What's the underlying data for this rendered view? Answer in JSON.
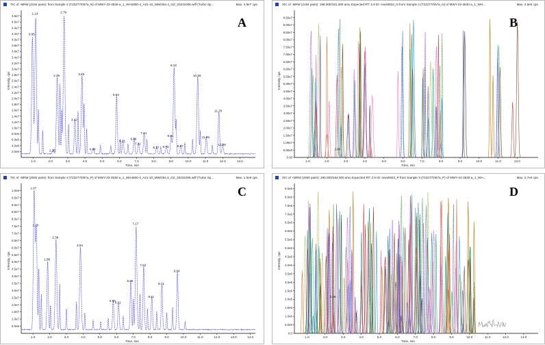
{
  "colors": {
    "tic_trace": "#4040ff",
    "axis": "#000000",
    "xic_palette": [
      "#2e8b2e",
      "#0a8a8a",
      "#d03030",
      "#8a2be2",
      "#c07000",
      "#1e90ff",
      "#9aa020",
      "#333333",
      "#ff6fb0",
      "#2255cc",
      "#7a3b1a",
      "#00aa66",
      "#cc33cc",
      "#555599",
      "#e07030"
    ]
  },
  "panels": [
    {
      "id": "A",
      "header": "TIC of -MRM (2184 pairs): from Sample 3 (T23277/067a_N) of MWY-23-3530-a_1_WH4800-4_A21-10_MW/284.4_GZ_20231006.wiff (Turbo Sp...",
      "max_label": "Max. 4.9e7 cps.",
      "ylabel": "Intensity, cps",
      "xlabel": "Time, min",
      "letter": "A",
      "chart_data": {
        "type": "line",
        "xlim": [
          0.3,
          13.9
        ],
        "ylim": [
          0,
          50000000.0
        ],
        "x_ticks": [
          "1.0",
          "2.0",
          "3.0",
          "4.0",
          "5.0",
          "6.0",
          "7.0",
          "8.0",
          "9.0",
          "10.0",
          "11.0",
          "12.0",
          "13.0"
        ],
        "y_ticks": [
          "2.0e6",
          "4.0e6",
          "6.0e6",
          "8.0e6",
          "1.0e7",
          "1.2e7",
          "1.4e7",
          "1.6e7",
          "1.8e7",
          "2.0e7",
          "2.2e7",
          "2.4e7",
          "2.6e7",
          "2.8e7",
          "3.0e7",
          "3.2e7",
          "3.4e7",
          "3.6e7",
          "3.8e7",
          "4.0e7",
          "4.2e7",
          "4.4e7",
          "4.6e7",
          "4.8e7"
        ],
        "peak_labels": [
          {
            "x": 0.95,
            "y": 41000000.0,
            "label": "0.95"
          },
          {
            "x": 1.14,
            "y": 48000000.0,
            "label": "1.14"
          },
          {
            "x": 2.15,
            "y": 1500000.0,
            "label": "2.15"
          },
          {
            "x": 2.39,
            "y": 27000000.0,
            "label": "2.39"
          },
          {
            "x": 2.79,
            "y": 48500000.0,
            "label": "2.79"
          },
          {
            "x": 3.42,
            "y": 12000000.0,
            "label": "3.42"
          },
          {
            "x": 3.83,
            "y": 27500000.0,
            "label": "3.83"
          },
          {
            "x": 4.48,
            "y": 2000000.0,
            "label": "4.48"
          },
          {
            "x": 5.84,
            "y": 20500000.0,
            "label": "5.84"
          },
          {
            "x": 6.21,
            "y": 4800000.0,
            "label": "6.21"
          },
          {
            "x": 6.86,
            "y": 5500000.0,
            "label": "6.86"
          },
          {
            "x": 7.11,
            "y": 3800000.0,
            "label": "7.11"
          },
          {
            "x": 7.44,
            "y": 7500000.0,
            "label": "7.44"
          },
          {
            "x": 8.17,
            "y": 2600000.0,
            "label": "8.17"
          },
          {
            "x": 8.73,
            "y": 2800000.0,
            "label": "8.73"
          },
          {
            "x": 9.01,
            "y": 6500000.0,
            "label": "9.01"
          },
          {
            "x": 9.18,
            "y": 30500000.0,
            "label": "9.18"
          },
          {
            "x": 9.57,
            "y": 3000000.0,
            "label": "9.57"
          },
          {
            "x": 10.55,
            "y": 27000000.0,
            "label": "10.55"
          },
          {
            "x": 11.05,
            "y": 6000000.0,
            "label": "11.05"
          },
          {
            "x": 11.78,
            "y": 15000000.0,
            "label": "11.78"
          },
          {
            "x": 12.0,
            "y": 3500000.0,
            "label": "12.00"
          }
        ]
      }
    },
    {
      "id": "B",
      "header": "XIC of -MRM (2184 pairs): 198.000/181.000 amu Expected RT: 2.6 ID: mws0923_N from Sample 3 (T23277/067a_N) of MWY-23-3530-a_1_WH...",
      "max_label": "Max. 2.8e5 cps.",
      "ylabel": "Intensity, cps",
      "xlabel": "Time, min",
      "letter": "B",
      "chart_data": {
        "type": "line",
        "xlim": [
          0.3,
          13.1
        ],
        "ylim": [
          0,
          100000000.0
        ],
        "x_ticks": [
          "1.0",
          "2.0",
          "3.0",
          "4.0",
          "5.0",
          "6.0",
          "7.0",
          "8.0",
          "9.0",
          "10.0",
          "11.0",
          "12.0"
        ],
        "y_ticks": [
          "0.00",
          "5.00e6",
          "1.00e7",
          "1.50e7",
          "2.00e7",
          "2.50e7",
          "3.00e7",
          "3.50e7",
          "4.00e7",
          "4.50e7",
          "5.00e7",
          "5.50e7",
          "6.00e7",
          "6.50e7",
          "7.00e7",
          "7.50e7",
          "8.00e7",
          "8.50e7",
          "9.00e7",
          "9.50e7"
        ],
        "peak_labels": [
          {
            "x": 2.6,
            "y": 4000000.0,
            "label": "2.60"
          }
        ]
      }
    },
    {
      "id": "C",
      "header": "TIC of -MRM (2050 pairs): from Sample 3 (T23277/067a_P) of MWY-23-3530-a_1_WH4800-4_A21-10_MW/284.4_GZ_20231006.wiff (Turbo Sp...",
      "max_label": "Max. 1.0e8 cps.",
      "ylabel": "Intensity, cps",
      "xlabel": "Time, min",
      "letter": "C",
      "chart_data": {
        "type": "line",
        "xlim": [
          0.3,
          14.3
        ],
        "ylim": [
          0,
          105000000.0
        ],
        "x_ticks": [
          "1.0",
          "2.0",
          "3.0",
          "4.0",
          "5.0",
          "6.0",
          "7.0",
          "8.0",
          "9.0",
          "10.0",
          "11.0",
          "12.0",
          "13.0",
          "14.0"
        ],
        "y_ticks": [
          "5.0e6",
          "1.0e7",
          "1.5e7",
          "2.0e7",
          "2.5e7",
          "3.0e7",
          "3.5e7",
          "4.0e7",
          "4.5e7",
          "5.0e7",
          "5.5e7",
          "6.0e7",
          "6.5e7",
          "7.0e7",
          "7.5e7",
          "8.0e7",
          "8.5e7",
          "9.0e7",
          "9.5e7",
          "1.0e8"
        ],
        "peak_labels": [
          {
            "x": 1.07,
            "y": 100000000.0,
            "label": "1.07"
          },
          {
            "x": 1.2,
            "y": 74000000.0,
            "label": "1.20"
          },
          {
            "x": 1.88,
            "y": 50000000.0,
            "label": "1.88"
          },
          {
            "x": 2.38,
            "y": 65500000.0,
            "label": "2.38"
          },
          {
            "x": 3.84,
            "y": 60000000.0,
            "label": "3.84"
          },
          {
            "x": 5.8,
            "y": 21000000.0,
            "label": "5.80"
          },
          {
            "x": 6.12,
            "y": 20000000.0,
            "label": "6.12"
          },
          {
            "x": 6.85,
            "y": 35000000.0,
            "label": "6.85"
          },
          {
            "x": 7.17,
            "y": 75000000.0,
            "label": "7.17"
          },
          {
            "x": 7.62,
            "y": 46000000.0,
            "label": "7.62"
          },
          {
            "x": 8.11,
            "y": 24000000.0,
            "label": "8.11"
          },
          {
            "x": 8.71,
            "y": 33000000.0,
            "label": "8.71"
          },
          {
            "x": 9.64,
            "y": 42000000.0,
            "label": "9.64"
          }
        ]
      }
    },
    {
      "id": "D",
      "header": "XIC of +MRM (2050 pairs): 280.000/154.000 amu Expected RT: 2.5 ID: mws0923_P from Sample 3 (T23277/067a_P) of MWY-23-3530-a_1_WH...",
      "max_label": "Max. 2.7e6 cps.",
      "ylabel": "Intensity, cps",
      "xlabel": "Time, min",
      "letter": "D",
      "chart_data": {
        "type": "line",
        "xlim": [
          0.3,
          13.8
        ],
        "ylim": [
          0,
          8800000.0
        ],
        "x_ticks": [
          "1.0",
          "2.0",
          "3.0",
          "4.0",
          "5.0",
          "6.0",
          "7.0",
          "8.0",
          "9.0",
          "10.0",
          "11.0",
          "12.0",
          "13.0"
        ],
        "y_ticks": [
          "0.0",
          "5.0e5",
          "1.0e6",
          "1.5e6",
          "2.0e6",
          "2.5e6",
          "3.0e6",
          "3.5e6",
          "4.0e6",
          "4.5e6",
          "5.0e6",
          "5.5e6",
          "6.0e6",
          "6.5e6",
          "7.0e6",
          "7.5e6",
          "8.0e6",
          "8.5e6"
        ],
        "peak_labels": [
          {
            "x": 2.46,
            "y": 2000000.0,
            "label": "2.46"
          }
        ]
      }
    }
  ]
}
